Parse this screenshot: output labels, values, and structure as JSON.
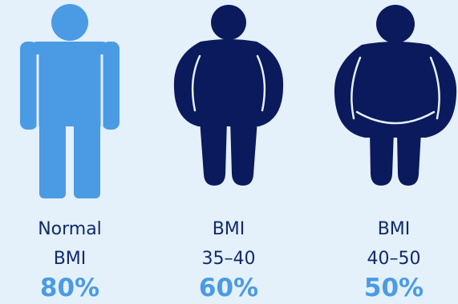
{
  "colors": {
    "background": "#e4f0fa",
    "normal_figure": "#4a9be4",
    "obese_figure": "#0a1a5c",
    "label_text": "#102a6b",
    "percent_text": "#4a9be4",
    "outline": "#e4f0fa"
  },
  "figures": [
    {
      "icon": "normal-weight-person-icon",
      "label_line1": "Normal",
      "label_line2": "BMI",
      "percent": "80%"
    },
    {
      "icon": "obese-person-icon",
      "label_line1": "BMI",
      "label_line2": "35–40",
      "percent": "60%"
    },
    {
      "icon": "severely-obese-person-icon",
      "label_line1": "BMI",
      "label_line2": "40–50",
      "percent": "50%"
    }
  ]
}
